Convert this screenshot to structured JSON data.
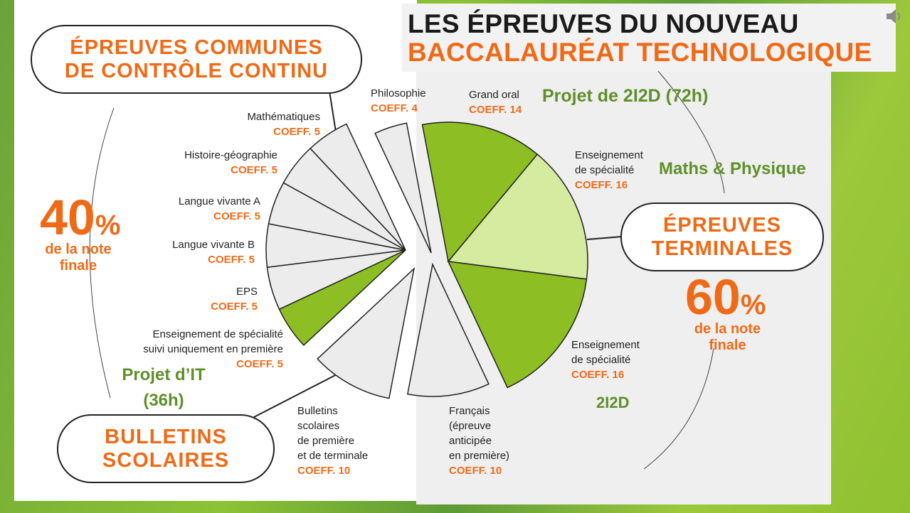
{
  "title": {
    "line1": "LES ÉPREUVES DU NOUVEAU",
    "line2": "BACCALAURÉAT TECHNOLOGIQUE"
  },
  "icons": {
    "audio": "speaker-icon"
  },
  "colors": {
    "orange": "#ef6a16",
    "green": "#8dbf24",
    "light_green": "#d4eba0",
    "gray": "#ececec",
    "annotation_green": "#5f8f2a"
  },
  "groups": {
    "controle_continu": {
      "label_line1": "ÉPREUVES COMMUNES",
      "label_line2": "DE CONTRÔLE CONTINU",
      "percent": "40",
      "percent_sign": "%",
      "note_line1": "de la note",
      "note_line2": "finale"
    },
    "terminales": {
      "label_line1": "ÉPREUVES",
      "label_line2": "TERMINALES",
      "percent": "60",
      "percent_sign": "%",
      "note_line1": "de la note",
      "note_line2": "finale"
    },
    "bulletins": {
      "label_line1": "BULLETINS",
      "label_line2": "SCOLAIRES"
    }
  },
  "slices": [
    {
      "id": "grand-oral",
      "lines": [
        "Grand oral"
      ],
      "coeff_label": "COEFF. 14",
      "coeff": 14,
      "fill": "#8dbf24"
    },
    {
      "id": "specialite-1",
      "lines": [
        "Enseignement",
        "de spécialité"
      ],
      "coeff_label": "COEFF. 16",
      "coeff": 16,
      "fill": "#d4eba0"
    },
    {
      "id": "specialite-2",
      "lines": [
        "Enseignement",
        "de spécialité"
      ],
      "coeff_label": "COEFF. 16",
      "coeff": 16,
      "fill": "#8dbf24"
    },
    {
      "id": "francais",
      "lines": [
        "Français",
        "(épreuve",
        "anticipée",
        "en première)"
      ],
      "coeff_label": "COEFF. 10",
      "coeff": 10,
      "fill": "#ececec"
    },
    {
      "id": "bulletins",
      "lines": [
        "Bulletins",
        "scolaires",
        "de première",
        "et de terminale"
      ],
      "coeff_label": "COEFF. 10",
      "coeff": 10,
      "fill": "#ececec"
    },
    {
      "id": "specialite-premiere",
      "lines": [
        "Enseignement de spécialité",
        "suivi uniquement en première"
      ],
      "coeff_label": "COEFF. 5",
      "coeff": 5,
      "fill": "#8dbf24"
    },
    {
      "id": "eps",
      "lines": [
        "EPS"
      ],
      "coeff_label": "COEFF. 5",
      "coeff": 5,
      "fill": "#ececec"
    },
    {
      "id": "langue-b",
      "lines": [
        "Langue vivante B"
      ],
      "coeff_label": "COEFF. 5",
      "coeff": 5,
      "fill": "#ececec"
    },
    {
      "id": "langue-a",
      "lines": [
        "Langue vivante A"
      ],
      "coeff_label": "COEFF. 5",
      "coeff": 5,
      "fill": "#ececec"
    },
    {
      "id": "histoire-geo",
      "lines": [
        "Histoire-géographie"
      ],
      "coeff_label": "COEFF. 5",
      "coeff": 5,
      "fill": "#ececec"
    },
    {
      "id": "mathematiques",
      "lines": [
        "Mathématiques"
      ],
      "coeff_label": "COEFF. 5",
      "coeff": 5,
      "fill": "#ececec"
    },
    {
      "id": "philosophie",
      "lines": [
        "Philosophie"
      ],
      "coeff_label": "COEFF. 4",
      "coeff": 4,
      "fill": "#ececec"
    }
  ],
  "annotations": {
    "projet_2i2d": "Projet de 2I2D (72h)",
    "maths_physique": "Maths & Physique",
    "i2d": "2I2D",
    "projet_it_line1": "Projet d’IT",
    "projet_it_line2": "(36h)"
  }
}
